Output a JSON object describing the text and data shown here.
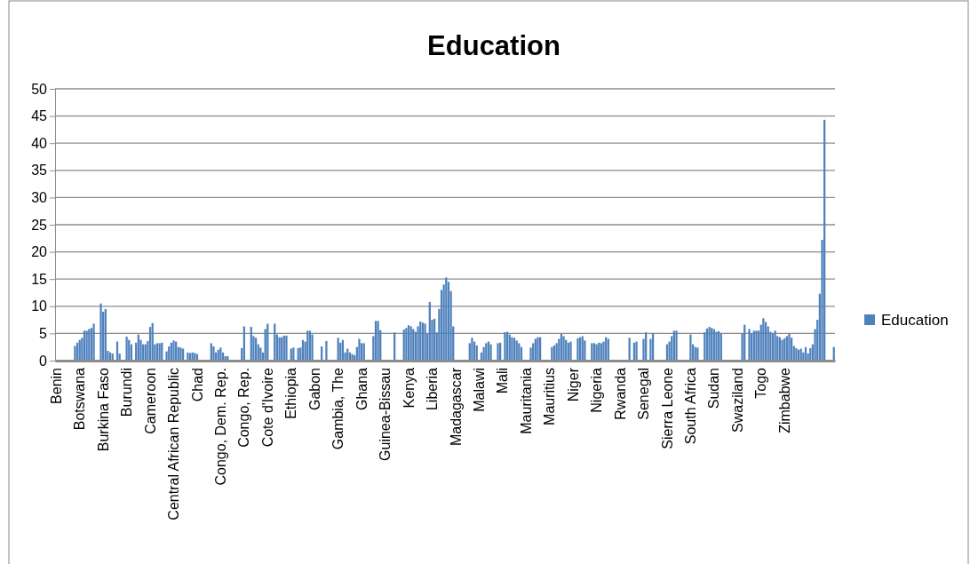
{
  "chart_data": {
    "type": "bar",
    "title": "Education",
    "categories": [
      "Benin",
      null,
      null,
      null,
      null,
      null,
      null,
      null,
      null,
      null,
      "Botswana",
      null,
      null,
      null,
      null,
      null,
      null,
      null,
      null,
      null,
      "Burkina Faso",
      null,
      null,
      null,
      null,
      null,
      null,
      null,
      null,
      null,
      "Burundi",
      null,
      null,
      null,
      null,
      null,
      null,
      null,
      null,
      null,
      "Cameroon",
      null,
      null,
      null,
      null,
      null,
      null,
      null,
      null,
      null,
      "Central African Republic",
      null,
      null,
      null,
      null,
      null,
      null,
      null,
      null,
      null,
      "Chad",
      null,
      null,
      null,
      null,
      null,
      null,
      null,
      null,
      null,
      "Congo, Dem. Rep.",
      null,
      null,
      null,
      null,
      null,
      null,
      null,
      null,
      null,
      "Congo, Rep.",
      null,
      null,
      null,
      null,
      null,
      null,
      null,
      null,
      null,
      "Cote d'Ivoire",
      null,
      null,
      null,
      null,
      null,
      null,
      null,
      null,
      null,
      "Ethiopia",
      null,
      null,
      null,
      null,
      null,
      null,
      null,
      null,
      null,
      "Gabon",
      null,
      null,
      null,
      null,
      null,
      null,
      null,
      null,
      null,
      "Gambia, The",
      null,
      null,
      null,
      null,
      null,
      null,
      null,
      null,
      null,
      "Ghana",
      null,
      null,
      null,
      null,
      null,
      null,
      null,
      null,
      null,
      "Guinea-Bissau",
      null,
      null,
      null,
      null,
      null,
      null,
      null,
      null,
      null,
      "Kenya",
      null,
      null,
      null,
      null,
      null,
      null,
      null,
      null,
      null,
      "Liberia",
      null,
      null,
      null,
      null,
      null,
      null,
      null,
      null,
      null,
      "Madagascar",
      null,
      null,
      null,
      null,
      null,
      null,
      null,
      null,
      null,
      "Malawi",
      null,
      null,
      null,
      null,
      null,
      null,
      null,
      null,
      null,
      "Mali",
      null,
      null,
      null,
      null,
      null,
      null,
      null,
      null,
      null,
      "Mauritania",
      null,
      null,
      null,
      null,
      null,
      null,
      null,
      null,
      null,
      "Mauritius",
      null,
      null,
      null,
      null,
      null,
      null,
      null,
      null,
      null,
      "Niger",
      null,
      null,
      null,
      null,
      null,
      null,
      null,
      null,
      null,
      "Nigeria",
      null,
      null,
      null,
      null,
      null,
      null,
      null,
      null,
      null,
      "Rwanda",
      null,
      null,
      null,
      null,
      null,
      null,
      null,
      null,
      null,
      "Senegal",
      null,
      null,
      null,
      null,
      null,
      null,
      null,
      null,
      null,
      "Sierra Leone",
      null,
      null,
      null,
      null,
      null,
      null,
      null,
      null,
      null,
      "South Africa",
      null,
      null,
      null,
      null,
      null,
      null,
      null,
      null,
      null,
      "Sudan",
      null,
      null,
      null,
      null,
      null,
      null,
      null,
      null,
      null,
      "Swaziland",
      null,
      null,
      null,
      null,
      null,
      null,
      null,
      null,
      null,
      "Togo",
      null,
      null,
      null,
      null,
      null,
      null,
      null,
      null,
      null,
      "Zimbabwe",
      null,
      null,
      null,
      null,
      null,
      null,
      null,
      null,
      null,
      null,
      null,
      null,
      null,
      null,
      null,
      null,
      null,
      null,
      null,
      null,
      null
    ],
    "series": [
      {
        "name": "Education",
        "color": "#4f81bd",
        "values": [
          null,
          null,
          null,
          null,
          null,
          null,
          null,
          null,
          2.7,
          3.3,
          3.8,
          4.2,
          5.5,
          5.5,
          5.8,
          6,
          6.8,
          null,
          null,
          10.5,
          9,
          9.5,
          1.8,
          1.5,
          1.3,
          null,
          3.5,
          1.3,
          null,
          null,
          4.4,
          3.8,
          3,
          null,
          3.3,
          4.8,
          3.8,
          3,
          3,
          3.6,
          6.2,
          6.9,
          3,
          3.2,
          3.2,
          3.3,
          null,
          1.7,
          2.6,
          3.3,
          3.7,
          3.5,
          2.5,
          2.4,
          2.2,
          null,
          1.5,
          1.4,
          1.5,
          1.4,
          1.2,
          null,
          null,
          null,
          null,
          null,
          3.2,
          2.6,
          1.5,
          2,
          2.4,
          1.5,
          0.8,
          0.8,
          null,
          null,
          null,
          null,
          null,
          2.3,
          6.3,
          null,
          null,
          6.2,
          4.5,
          4.2,
          3,
          2.4,
          1.5,
          5.8,
          6.8,
          null,
          null,
          6.8,
          4.8,
          4.3,
          4.3,
          4.6,
          4.6,
          null,
          2.2,
          2.4,
          null,
          2.3,
          2.4,
          3.8,
          3.5,
          5.5,
          5.5,
          4.8,
          null,
          null,
          null,
          2.6,
          null,
          3.6,
          null,
          null,
          null,
          null,
          4.2,
          3.3,
          3.8,
          1.5,
          2.2,
          1.5,
          1.2,
          1,
          2.5,
          4,
          3.2,
          3.2,
          null,
          null,
          null,
          4.5,
          7.3,
          7.3,
          5.6,
          null,
          null,
          null,
          null,
          null,
          5.2,
          null,
          null,
          null,
          5.7,
          6,
          6.5,
          6.3,
          5.8,
          5.3,
          6.3,
          7.2,
          7,
          6.8,
          4.9,
          10.8,
          7.5,
          7.7,
          5.2,
          9.5,
          13,
          14,
          15.3,
          14.5,
          12.8,
          6.3,
          null,
          null,
          null,
          null,
          null,
          null,
          3.2,
          4.2,
          3.5,
          2.8,
          null,
          1.5,
          2.5,
          3.2,
          3.5,
          3,
          null,
          null,
          3.2,
          3.3,
          null,
          5.2,
          5.3,
          4.8,
          4.3,
          4.2,
          3.7,
          3.2,
          2.5,
          null,
          null,
          null,
          2.4,
          3.2,
          4,
          4.3,
          4.3,
          null,
          null,
          null,
          null,
          2.5,
          2.8,
          3.2,
          4,
          4.9,
          4.5,
          3.8,
          3.3,
          3.5,
          null,
          null,
          4.1,
          4.3,
          4.5,
          3.7,
          null,
          null,
          3.2,
          3.2,
          3,
          3.3,
          3.2,
          3.5,
          4.3,
          4,
          null,
          null,
          null,
          null,
          null,
          null,
          null,
          null,
          4.2,
          null,
          3.3,
          3.5,
          null,
          null,
          4,
          5.2,
          null,
          4,
          5,
          null,
          null,
          null,
          null,
          null,
          3,
          3.5,
          4.5,
          5.5,
          5.5,
          null,
          null,
          null,
          null,
          null,
          4.8,
          3,
          2.5,
          2.4,
          null,
          null,
          5.2,
          5.9,
          6.2,
          6,
          5.8,
          5.3,
          5.4,
          5,
          null,
          null,
          null,
          null,
          null,
          null,
          null,
          null,
          5,
          6.6,
          null,
          5.8,
          5,
          5.5,
          5.5,
          5.5,
          6.6,
          7.8,
          7.1,
          6.3,
          5.3,
          4.9,
          5.5,
          4.5,
          4.3,
          3.8,
          4.1,
          4.5,
          5,
          4.2,
          2.7,
          2.3,
          2,
          2.2,
          1.5,
          2.5,
          1.3,
          2.3,
          3,
          5.8,
          7.5,
          12.3,
          22.2,
          44.3,
          null,
          null,
          null,
          2.5
        ]
      }
    ],
    "ylim": [
      0,
      50
    ],
    "yticks": [
      0,
      5,
      10,
      15,
      20,
      25,
      30,
      35,
      40,
      45,
      50
    ],
    "grid": "y",
    "legend": "right"
  }
}
